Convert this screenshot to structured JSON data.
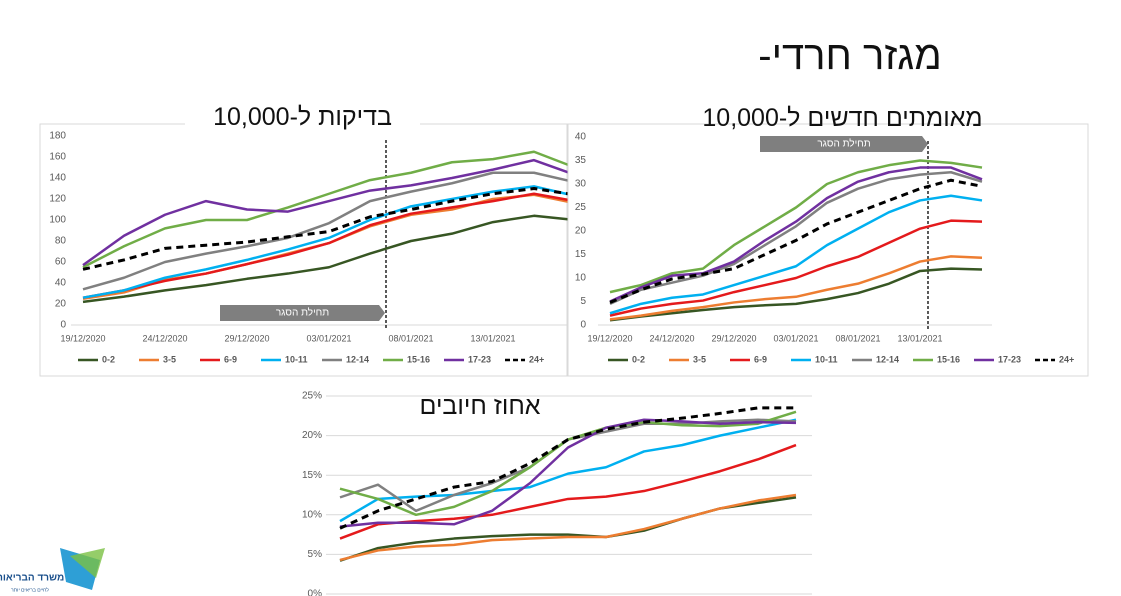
{
  "header": {
    "title": "מגזר חרדי-"
  },
  "chart_data": [
    {
      "type": "line",
      "title": "בדיקות ל-10,000",
      "annotation": "תחילת הסגר",
      "legend": "bottom",
      "grid": false,
      "categories": [
        "19/12/2020",
        null,
        "24/12/2020",
        null,
        "29/12/2020",
        null,
        "03/01/2021",
        null,
        "08/01/2021",
        null,
        "13/01/2021",
        null,
        null
      ],
      "ylim": [
        0,
        180
      ],
      "yticks": [
        0,
        20,
        40,
        60,
        80,
        100,
        120,
        140,
        160,
        180
      ],
      "series": [
        {
          "name": "0-2",
          "color": "#375623",
          "values": [
            22,
            27,
            33,
            38,
            44,
            49,
            55,
            68,
            80,
            87,
            98,
            104,
            100
          ]
        },
        {
          "name": "3-5",
          "color": "#ed7d31",
          "values": [
            25,
            31,
            43,
            49,
            58,
            68,
            78,
            94,
            105,
            110,
            120,
            124,
            116
          ]
        },
        {
          "name": "6-9",
          "color": "#e41a1c",
          "values": [
            26,
            33,
            42,
            49,
            58,
            67,
            78,
            95,
            106,
            112,
            118,
            125,
            118
          ]
        },
        {
          "name": "10-11",
          "color": "#00b0f0",
          "values": [
            26,
            33,
            45,
            53,
            62,
            72,
            83,
            100,
            113,
            120,
            127,
            132,
            123
          ]
        },
        {
          "name": "12-14",
          "color": "#808080",
          "values": [
            34,
            45,
            60,
            68,
            75,
            83,
            97,
            118,
            127,
            135,
            145,
            145,
            136
          ]
        },
        {
          "name": "15-16",
          "color": "#70ad47",
          "values": [
            55,
            75,
            92,
            100,
            100,
            112,
            125,
            138,
            145,
            155,
            158,
            165,
            150
          ]
        },
        {
          "name": "17-23",
          "color": "#7030a0",
          "values": [
            57,
            85,
            105,
            118,
            110,
            108,
            118,
            128,
            133,
            140,
            148,
            157,
            143
          ]
        },
        {
          "name": "24+",
          "color": "#000000",
          "dashed": true,
          "values": [
            53,
            62,
            73,
            76,
            79,
            84,
            89,
            103,
            110,
            118,
            125,
            130,
            124
          ]
        }
      ]
    },
    {
      "type": "line",
      "title": "מאומתים חדשים ל-10,000",
      "annotation": "תחילת הסגר",
      "legend": "bottom",
      "grid": false,
      "categories": [
        "19/12/2020",
        null,
        "24/12/2020",
        null,
        "29/12/2020",
        null,
        "03/01/2021",
        null,
        "08/01/2021",
        null,
        "13/01/2021",
        null,
        null
      ],
      "ylim": [
        0,
        40
      ],
      "yticks": [
        0,
        5,
        10,
        15,
        20,
        25,
        30,
        35,
        40
      ],
      "series": [
        {
          "name": "0-2",
          "color": "#375623",
          "values": [
            1,
            1.8,
            2.5,
            3.2,
            3.8,
            4.2,
            4.5,
            5.5,
            6.8,
            8.8,
            11.5,
            12,
            11.8
          ]
        },
        {
          "name": "3-5",
          "color": "#ed7d31",
          "values": [
            1.2,
            2,
            3,
            3.8,
            4.8,
            5.5,
            6,
            7.5,
            8.8,
            11,
            13.5,
            14.6,
            14.3
          ]
        },
        {
          "name": "6-9",
          "color": "#e41a1c",
          "values": [
            2,
            3.5,
            4.5,
            5.2,
            7,
            8.5,
            10,
            12.5,
            14.5,
            17.5,
            20.5,
            22.2,
            22
          ]
        },
        {
          "name": "10-11",
          "color": "#00b0f0",
          "values": [
            2.5,
            4.5,
            5.8,
            6.5,
            8.5,
            10.5,
            12.5,
            17,
            20.5,
            24,
            26.5,
            27.5,
            26.5
          ]
        },
        {
          "name": "12-14",
          "color": "#808080",
          "values": [
            4.5,
            7.5,
            9,
            10.5,
            13,
            17,
            21,
            26,
            29,
            31,
            32,
            32.5,
            30.5
          ]
        },
        {
          "name": "15-16",
          "color": "#70ad47",
          "values": [
            7,
            8.5,
            11,
            12,
            17,
            21,
            25,
            30,
            32.5,
            34,
            35,
            34.5,
            33.5
          ]
        },
        {
          "name": "17-23",
          "color": "#7030a0",
          "values": [
            5,
            8,
            10.5,
            11,
            13.5,
            18,
            22,
            27,
            30.5,
            32.5,
            33.5,
            33.5,
            31
          ]
        },
        {
          "name": "24+",
          "color": "#000000",
          "dashed": true,
          "values": [
            4.8,
            7.5,
            9.8,
            10.8,
            12,
            15,
            18,
            21.5,
            24,
            26.5,
            29,
            30.8,
            29.5
          ]
        }
      ]
    },
    {
      "type": "line",
      "title": "אחוז חיובים",
      "grid": true,
      "categories": [
        null,
        null,
        null,
        null,
        null,
        null,
        null,
        null,
        null,
        null,
        null,
        null,
        null
      ],
      "ylim": [
        0,
        25
      ],
      "yticks": [
        {
          "value": 0,
          "label": "0%"
        },
        {
          "value": 5,
          "label": "5%"
        },
        {
          "value": 10,
          "label": "10%"
        },
        {
          "value": 15,
          "label": "15%"
        },
        {
          "value": 20,
          "label": "20%"
        },
        {
          "value": 25,
          "label": "25%"
        }
      ],
      "series": [
        {
          "color": "#375623",
          "values": [
            4.2,
            5.8,
            6.5,
            7,
            7.3,
            7.5,
            7.5,
            7.2,
            8,
            9.5,
            10.8,
            11.5,
            12.2
          ]
        },
        {
          "color": "#ed7d31",
          "values": [
            4.3,
            5.5,
            6,
            6.2,
            6.8,
            7,
            7.2,
            7.2,
            8.2,
            9.5,
            10.8,
            11.8,
            12.5
          ]
        },
        {
          "color": "#e41a1c",
          "values": [
            7,
            8.8,
            9.2,
            9.5,
            10,
            11,
            12,
            12.3,
            13,
            14.2,
            15.5,
            17,
            18.8
          ]
        },
        {
          "color": "#00b0f0",
          "values": [
            9.2,
            12,
            12.3,
            12.5,
            13,
            13.5,
            15.2,
            16,
            18,
            18.8,
            20,
            21,
            22
          ]
        },
        {
          "color": "#808080",
          "values": [
            12.2,
            13.8,
            10.5,
            12.5,
            14,
            16,
            19.5,
            20.5,
            21.5,
            21.5,
            21.8,
            22,
            21.8
          ]
        },
        {
          "color": "#70ad47",
          "values": [
            13.3,
            12,
            10,
            11,
            13,
            16,
            19.5,
            21,
            21.7,
            21.3,
            21.2,
            21.5,
            23
          ]
        },
        {
          "color": "#7030a0",
          "values": [
            8.5,
            9,
            9,
            8.8,
            10.5,
            14,
            18.5,
            21,
            22,
            21.8,
            21.5,
            21.7,
            21.6
          ]
        },
        {
          "color": "#000000",
          "dashed": true,
          "values": [
            8.3,
            10.5,
            12,
            13.5,
            14.2,
            16.5,
            19.5,
            20.8,
            21.7,
            22.2,
            22.8,
            23.5,
            23.5
          ]
        }
      ]
    }
  ],
  "logo": {
    "name": "משרד הבריאות",
    "tagline": "לחיים בריאים יותר"
  }
}
